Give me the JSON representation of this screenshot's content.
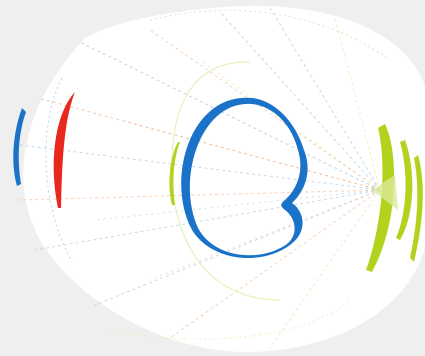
{
  "colors": {
    "background": "#efefef",
    "panel": "#ffffff",
    "blue": "#1a73c8",
    "red": "#e8281e",
    "lime": "#b2d31e",
    "faint_orange": "#f2b48a",
    "faint_blue": "#9cc3e0",
    "faint_lime": "#d9ea9a"
  },
  "icons": {
    "main_glyph": "c-glyph-icon"
  }
}
